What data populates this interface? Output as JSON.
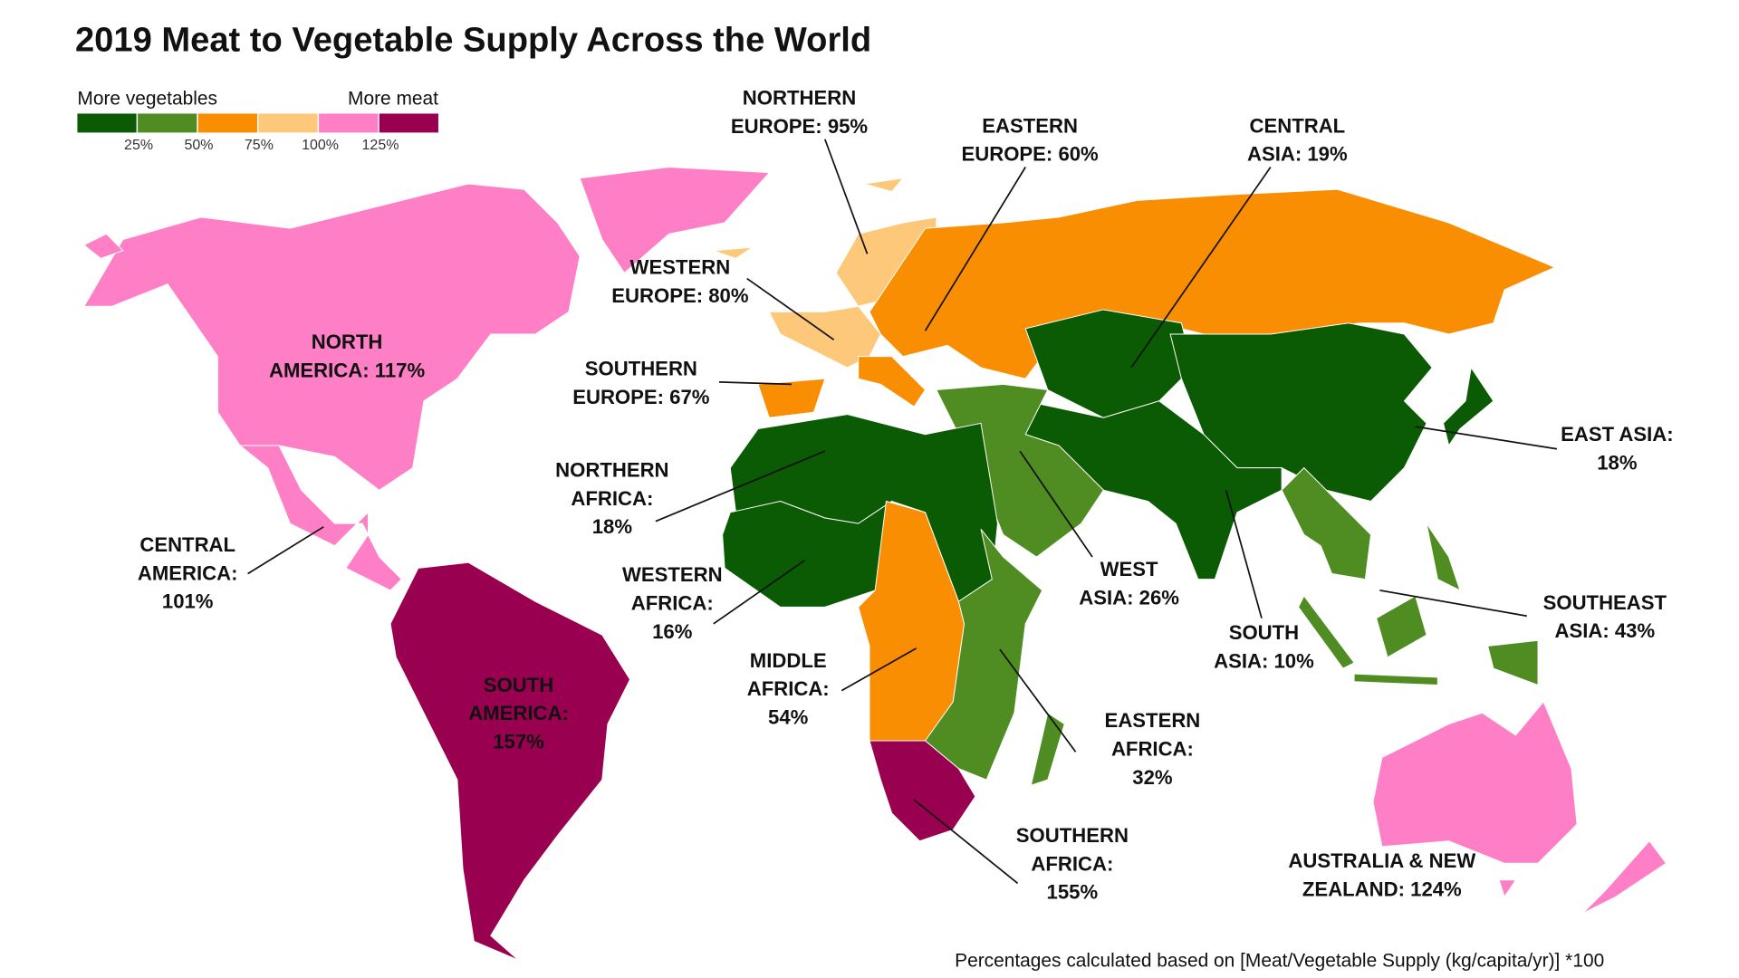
{
  "title": "2019 Meat to Vegetable Supply Across the World",
  "legend": {
    "left_label": "More vegetables",
    "right_label": "More meat",
    "colors": [
      "#0b5a04",
      "#4f8c22",
      "#f98e03",
      "#fdc87a",
      "#fe7fc5",
      "#990050"
    ],
    "ticks": [
      "25%",
      "50%",
      "75%",
      "100%",
      "125%"
    ]
  },
  "regions": {
    "north_america": {
      "lines": [
        "NORTH",
        "AMERICA: 117%"
      ],
      "value": 117,
      "color": "#fe7fc5"
    },
    "central_america": {
      "lines": [
        "CENTRAL",
        "AMERICA:",
        "101%"
      ],
      "value": 101,
      "color": "#fe7fc5"
    },
    "south_america": {
      "lines": [
        "SOUTH",
        "AMERICA:",
        "157%"
      ],
      "value": 157,
      "color": "#990050"
    },
    "northern_europe": {
      "lines": [
        "NORTHERN",
        "EUROPE: 95%"
      ],
      "value": 95,
      "color": "#fdc87a"
    },
    "western_europe": {
      "lines": [
        "WESTERN",
        "EUROPE: 80%"
      ],
      "value": 80,
      "color": "#fdc87a"
    },
    "southern_europe": {
      "lines": [
        "SOUTHERN",
        "EUROPE: 67%"
      ],
      "value": 67,
      "color": "#f98e03"
    },
    "eastern_europe": {
      "lines": [
        "EASTERN",
        "EUROPE: 60%"
      ],
      "value": 60,
      "color": "#f98e03"
    },
    "central_asia": {
      "lines": [
        "CENTRAL",
        "ASIA: 19%"
      ],
      "value": 19,
      "color": "#0b5a04"
    },
    "east_asia": {
      "lines": [
        "EAST ASIA:",
        "18%"
      ],
      "value": 18,
      "color": "#0b5a04"
    },
    "south_asia": {
      "lines": [
        "SOUTH",
        "ASIA: 10%"
      ],
      "value": 10,
      "color": "#0b5a04"
    },
    "west_asia": {
      "lines": [
        "WEST",
        "ASIA: 26%"
      ],
      "value": 26,
      "color": "#4f8c22"
    },
    "southeast_asia": {
      "lines": [
        "SOUTHEAST",
        "ASIA: 43%"
      ],
      "value": 43,
      "color": "#4f8c22"
    },
    "northern_africa": {
      "lines": [
        "NORTHERN",
        "AFRICA:",
        "18%"
      ],
      "value": 18,
      "color": "#0b5a04"
    },
    "western_africa": {
      "lines": [
        "WESTERN",
        "AFRICA:",
        "16%"
      ],
      "value": 16,
      "color": "#0b5a04"
    },
    "middle_africa": {
      "lines": [
        "MIDDLE",
        "AFRICA:",
        "54%"
      ],
      "value": 54,
      "color": "#f98e03"
    },
    "eastern_africa": {
      "lines": [
        "EASTERN",
        "AFRICA:",
        "32%"
      ],
      "value": 32,
      "color": "#4f8c22"
    },
    "southern_africa": {
      "lines": [
        "SOUTHERN",
        "AFRICA:",
        "155%"
      ],
      "value": 155,
      "color": "#990050"
    },
    "australia_nz": {
      "lines": [
        "AUSTRALIA & NEW",
        "ZEALAND: 124%"
      ],
      "value": 124,
      "color": "#fe7fc5"
    }
  },
  "footnote": "Percentages calculated based on [Meat/Vegetable Supply (kg/capita/yr)] *100"
}
